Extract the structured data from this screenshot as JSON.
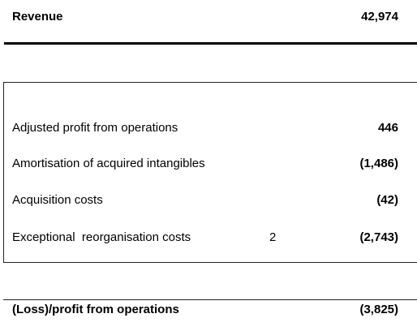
{
  "revenue": {
    "label": "Revenue",
    "value": "42,974"
  },
  "items": [
    {
      "label": "Adjusted profit from operations",
      "note": "",
      "value": "446"
    },
    {
      "label": "Amortisation of acquired intangibles",
      "note": "",
      "value": "(1,486)"
    },
    {
      "label": "Acquisition costs",
      "note": "",
      "value": "(42)"
    },
    {
      "label": "Exceptional  reorganisation costs",
      "note": "2",
      "value": "(2,743)"
    }
  ],
  "total": {
    "label": "(Loss)/profit from operations",
    "value": "(3,825)"
  }
}
